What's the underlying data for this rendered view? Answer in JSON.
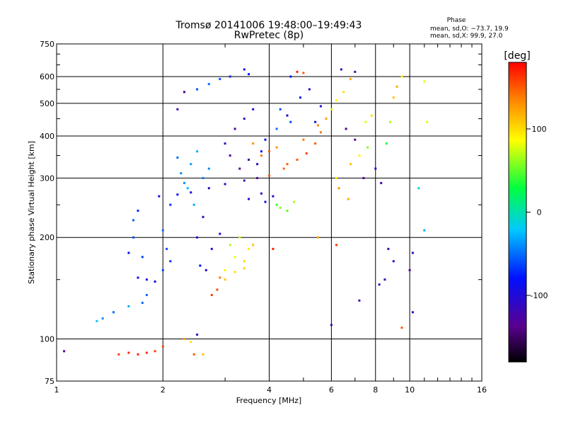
{
  "chart_data": {
    "type": "scatter",
    "title": "Tromsø 20141006 19:48:00–19:49:43",
    "subtitle": "RwPretec (8p)",
    "xlabel": "Frequency [MHz]",
    "ylabel": "Stationary phase Virtual Height [km]",
    "xscale": "log",
    "yscale": "log",
    "xlim": [
      1,
      16
    ],
    "ylim": [
      75,
      750
    ],
    "x_ticks": [
      1,
      2,
      4,
      6,
      8,
      10,
      16
    ],
    "x_tick_labels": [
      "1",
      "2",
      "4",
      "6",
      "8",
      "10",
      "16"
    ],
    "y_ticks": [
      75,
      100,
      200,
      300,
      400,
      500,
      600,
      750
    ],
    "y_tick_labels": [
      "75",
      "100",
      "200",
      "300",
      "400",
      "500",
      "600",
      "750"
    ],
    "grid": true,
    "stats": {
      "heading": "Phase",
      "o_line": "mean, sd,O: −73.7, 19.9",
      "x_line": "mean, sd,X:  99.9, 27.0"
    },
    "colorbar": {
      "label": "[deg]",
      "range": [
        -180,
        180
      ],
      "ticks": [
        100,
        0,
        -100
      ],
      "tick_labels": [
        "100",
        "0",
        "-100"
      ],
      "colormap": "rainbow (black → violet → blue → cyan → green → yellow → red)",
      "placement": "right"
    },
    "series": [
      {
        "points": [
          [
            1.05,
            92,
            -130
          ],
          [
            1.3,
            113,
            -20
          ],
          [
            1.35,
            115,
            -40
          ],
          [
            1.45,
            120,
            -50
          ],
          [
            1.6,
            125,
            -30
          ],
          [
            1.75,
            128,
            -50
          ],
          [
            1.8,
            135,
            -50
          ],
          [
            1.7,
            152,
            -90
          ],
          [
            1.8,
            150,
            -95
          ],
          [
            1.9,
            148,
            -90
          ],
          [
            2.0,
            160,
            -60
          ],
          [
            2.1,
            170,
            -70
          ],
          [
            1.6,
            180,
            -80
          ],
          [
            1.65,
            200,
            -60
          ],
          [
            1.7,
            240,
            -70
          ],
          [
            1.65,
            225,
            -55
          ],
          [
            1.75,
            175,
            -65
          ],
          [
            2.0,
            210,
            -50
          ],
          [
            2.05,
            185,
            -60
          ],
          [
            2.1,
            250,
            -70
          ],
          [
            1.95,
            265,
            -90
          ],
          [
            2.2,
            268,
            -85
          ],
          [
            2.4,
            272,
            -100
          ],
          [
            2.7,
            280,
            -110
          ],
          [
            3.0,
            288,
            -115
          ],
          [
            3.4,
            295,
            -120
          ],
          [
            3.7,
            300,
            -125
          ],
          [
            2.25,
            310,
            -40
          ],
          [
            2.4,
            330,
            -35
          ],
          [
            2.5,
            360,
            -30
          ],
          [
            2.6,
            300,
            -45
          ],
          [
            2.7,
            320,
            -40
          ],
          [
            2.2,
            345,
            -50
          ],
          [
            2.3,
            290,
            -40
          ],
          [
            2.35,
            280,
            -25
          ],
          [
            2.45,
            250,
            -30
          ],
          [
            2.6,
            230,
            -110
          ],
          [
            2.5,
            200,
            -100
          ],
          [
            2.75,
            185,
            -105
          ],
          [
            2.9,
            205,
            -100
          ],
          [
            2.55,
            165,
            -80
          ],
          [
            2.65,
            160,
            -110
          ],
          [
            2.2,
            480,
            -120
          ],
          [
            2.3,
            540,
            -140
          ],
          [
            2.5,
            550,
            -60
          ],
          [
            2.7,
            570,
            -50
          ],
          [
            2.9,
            590,
            -60
          ],
          [
            3.1,
            600,
            -70
          ],
          [
            3.4,
            630,
            -90
          ],
          [
            3.5,
            610,
            -80
          ],
          [
            3.0,
            380,
            -120
          ],
          [
            3.2,
            420,
            -125
          ],
          [
            3.4,
            450,
            -110
          ],
          [
            3.6,
            480,
            -100
          ],
          [
            3.1,
            350,
            -130
          ],
          [
            3.3,
            320,
            -135
          ],
          [
            3.5,
            340,
            -120
          ],
          [
            3.7,
            330,
            -110
          ],
          [
            3.8,
            360,
            -90
          ],
          [
            3.9,
            390,
            -80
          ],
          [
            3.6,
            380,
            130
          ],
          [
            3.8,
            350,
            140
          ],
          [
            4.0,
            360,
            150
          ],
          [
            4.2,
            370,
            130
          ],
          [
            3.5,
            260,
            -100
          ],
          [
            3.8,
            270,
            -110
          ],
          [
            3.9,
            255,
            -90
          ],
          [
            4.1,
            265,
            -100
          ],
          [
            4.2,
            250,
            40
          ],
          [
            4.3,
            245,
            60
          ],
          [
            4.5,
            240,
            50
          ],
          [
            4.7,
            255,
            70
          ],
          [
            4.0,
            305,
            150
          ],
          [
            4.4,
            320,
            145
          ],
          [
            4.8,
            340,
            150
          ],
          [
            5.1,
            355,
            160
          ],
          [
            5.4,
            380,
            150
          ],
          [
            5.6,
            410,
            140
          ],
          [
            5.8,
            450,
            125
          ],
          [
            4.5,
            330,
            150
          ],
          [
            5.0,
            390,
            140
          ],
          [
            5.5,
            430,
            135
          ],
          [
            3.0,
            160,
            90
          ],
          [
            3.2,
            175,
            80
          ],
          [
            3.4,
            170,
            100
          ],
          [
            3.5,
            185,
            95
          ],
          [
            3.6,
            190,
            110
          ],
          [
            3.1,
            190,
            70
          ],
          [
            3.3,
            200,
            75
          ],
          [
            3.0,
            150,
            110
          ],
          [
            3.2,
            158,
            100
          ],
          [
            3.4,
            162,
            105
          ],
          [
            2.9,
            152,
            140
          ],
          [
            2.75,
            135,
            160
          ],
          [
            2.85,
            140,
            155
          ],
          [
            1.5,
            90,
            160
          ],
          [
            1.6,
            91,
            165
          ],
          [
            1.7,
            90,
            170
          ],
          [
            1.8,
            91,
            165
          ],
          [
            1.9,
            92,
            160
          ],
          [
            2.0,
            95,
            155
          ],
          [
            2.3,
            100,
            120
          ],
          [
            2.4,
            98,
            100
          ],
          [
            2.5,
            103,
            -110
          ],
          [
            2.6,
            90,
            110
          ],
          [
            2.45,
            90,
            150
          ],
          [
            4.6,
            600,
            -80
          ],
          [
            4.8,
            620,
            170
          ],
          [
            5.0,
            615,
            150
          ],
          [
            4.3,
            480,
            -60
          ],
          [
            4.5,
            460,
            -90
          ],
          [
            4.9,
            520,
            -90
          ],
          [
            5.2,
            550,
            -100
          ],
          [
            4.2,
            420,
            -50
          ],
          [
            4.6,
            440,
            -60
          ],
          [
            5.4,
            440,
            -100
          ],
          [
            5.6,
            490,
            -110
          ],
          [
            6.0,
            480,
            80
          ],
          [
            6.2,
            510,
            90
          ],
          [
            6.5,
            540,
            100
          ],
          [
            6.8,
            590,
            120
          ],
          [
            6.4,
            630,
            -110
          ],
          [
            7.0,
            620,
            -120
          ],
          [
            6.6,
            420,
            -140
          ],
          [
            7.0,
            390,
            -130
          ],
          [
            7.4,
            300,
            -140
          ],
          [
            6.8,
            330,
            110
          ],
          [
            7.2,
            350,
            90
          ],
          [
            7.6,
            370,
            60
          ],
          [
            6.3,
            280,
            130
          ],
          [
            6.7,
            260,
            120
          ],
          [
            6.2,
            300,
            100
          ],
          [
            7.5,
            440,
            80
          ],
          [
            7.8,
            460,
            100
          ],
          [
            8.0,
            320,
            -110
          ],
          [
            8.3,
            290,
            -120
          ],
          [
            8.6,
            380,
            30
          ],
          [
            8.8,
            440,
            70
          ],
          [
            9.0,
            520,
            110
          ],
          [
            9.2,
            560,
            120
          ],
          [
            9.5,
            600,
            90
          ],
          [
            8.5,
            150,
            -120
          ],
          [
            9.0,
            170,
            -110
          ],
          [
            8.2,
            145,
            -115
          ],
          [
            10.0,
            160,
            -130
          ],
          [
            10.2,
            180,
            -110
          ],
          [
            11.0,
            210,
            -30
          ],
          [
            10.6,
            280,
            -10
          ],
          [
            11.2,
            440,
            80
          ],
          [
            11.0,
            580,
            80
          ],
          [
            6.0,
            110,
            -110
          ],
          [
            7.2,
            130,
            -120
          ],
          [
            9.5,
            108,
            150
          ],
          [
            10.2,
            120,
            -100
          ],
          [
            6.2,
            190,
            160
          ],
          [
            8.7,
            185,
            -120
          ],
          [
            4.1,
            185,
            170
          ],
          [
            5.5,
            200,
            120
          ]
        ]
      }
    ]
  }
}
